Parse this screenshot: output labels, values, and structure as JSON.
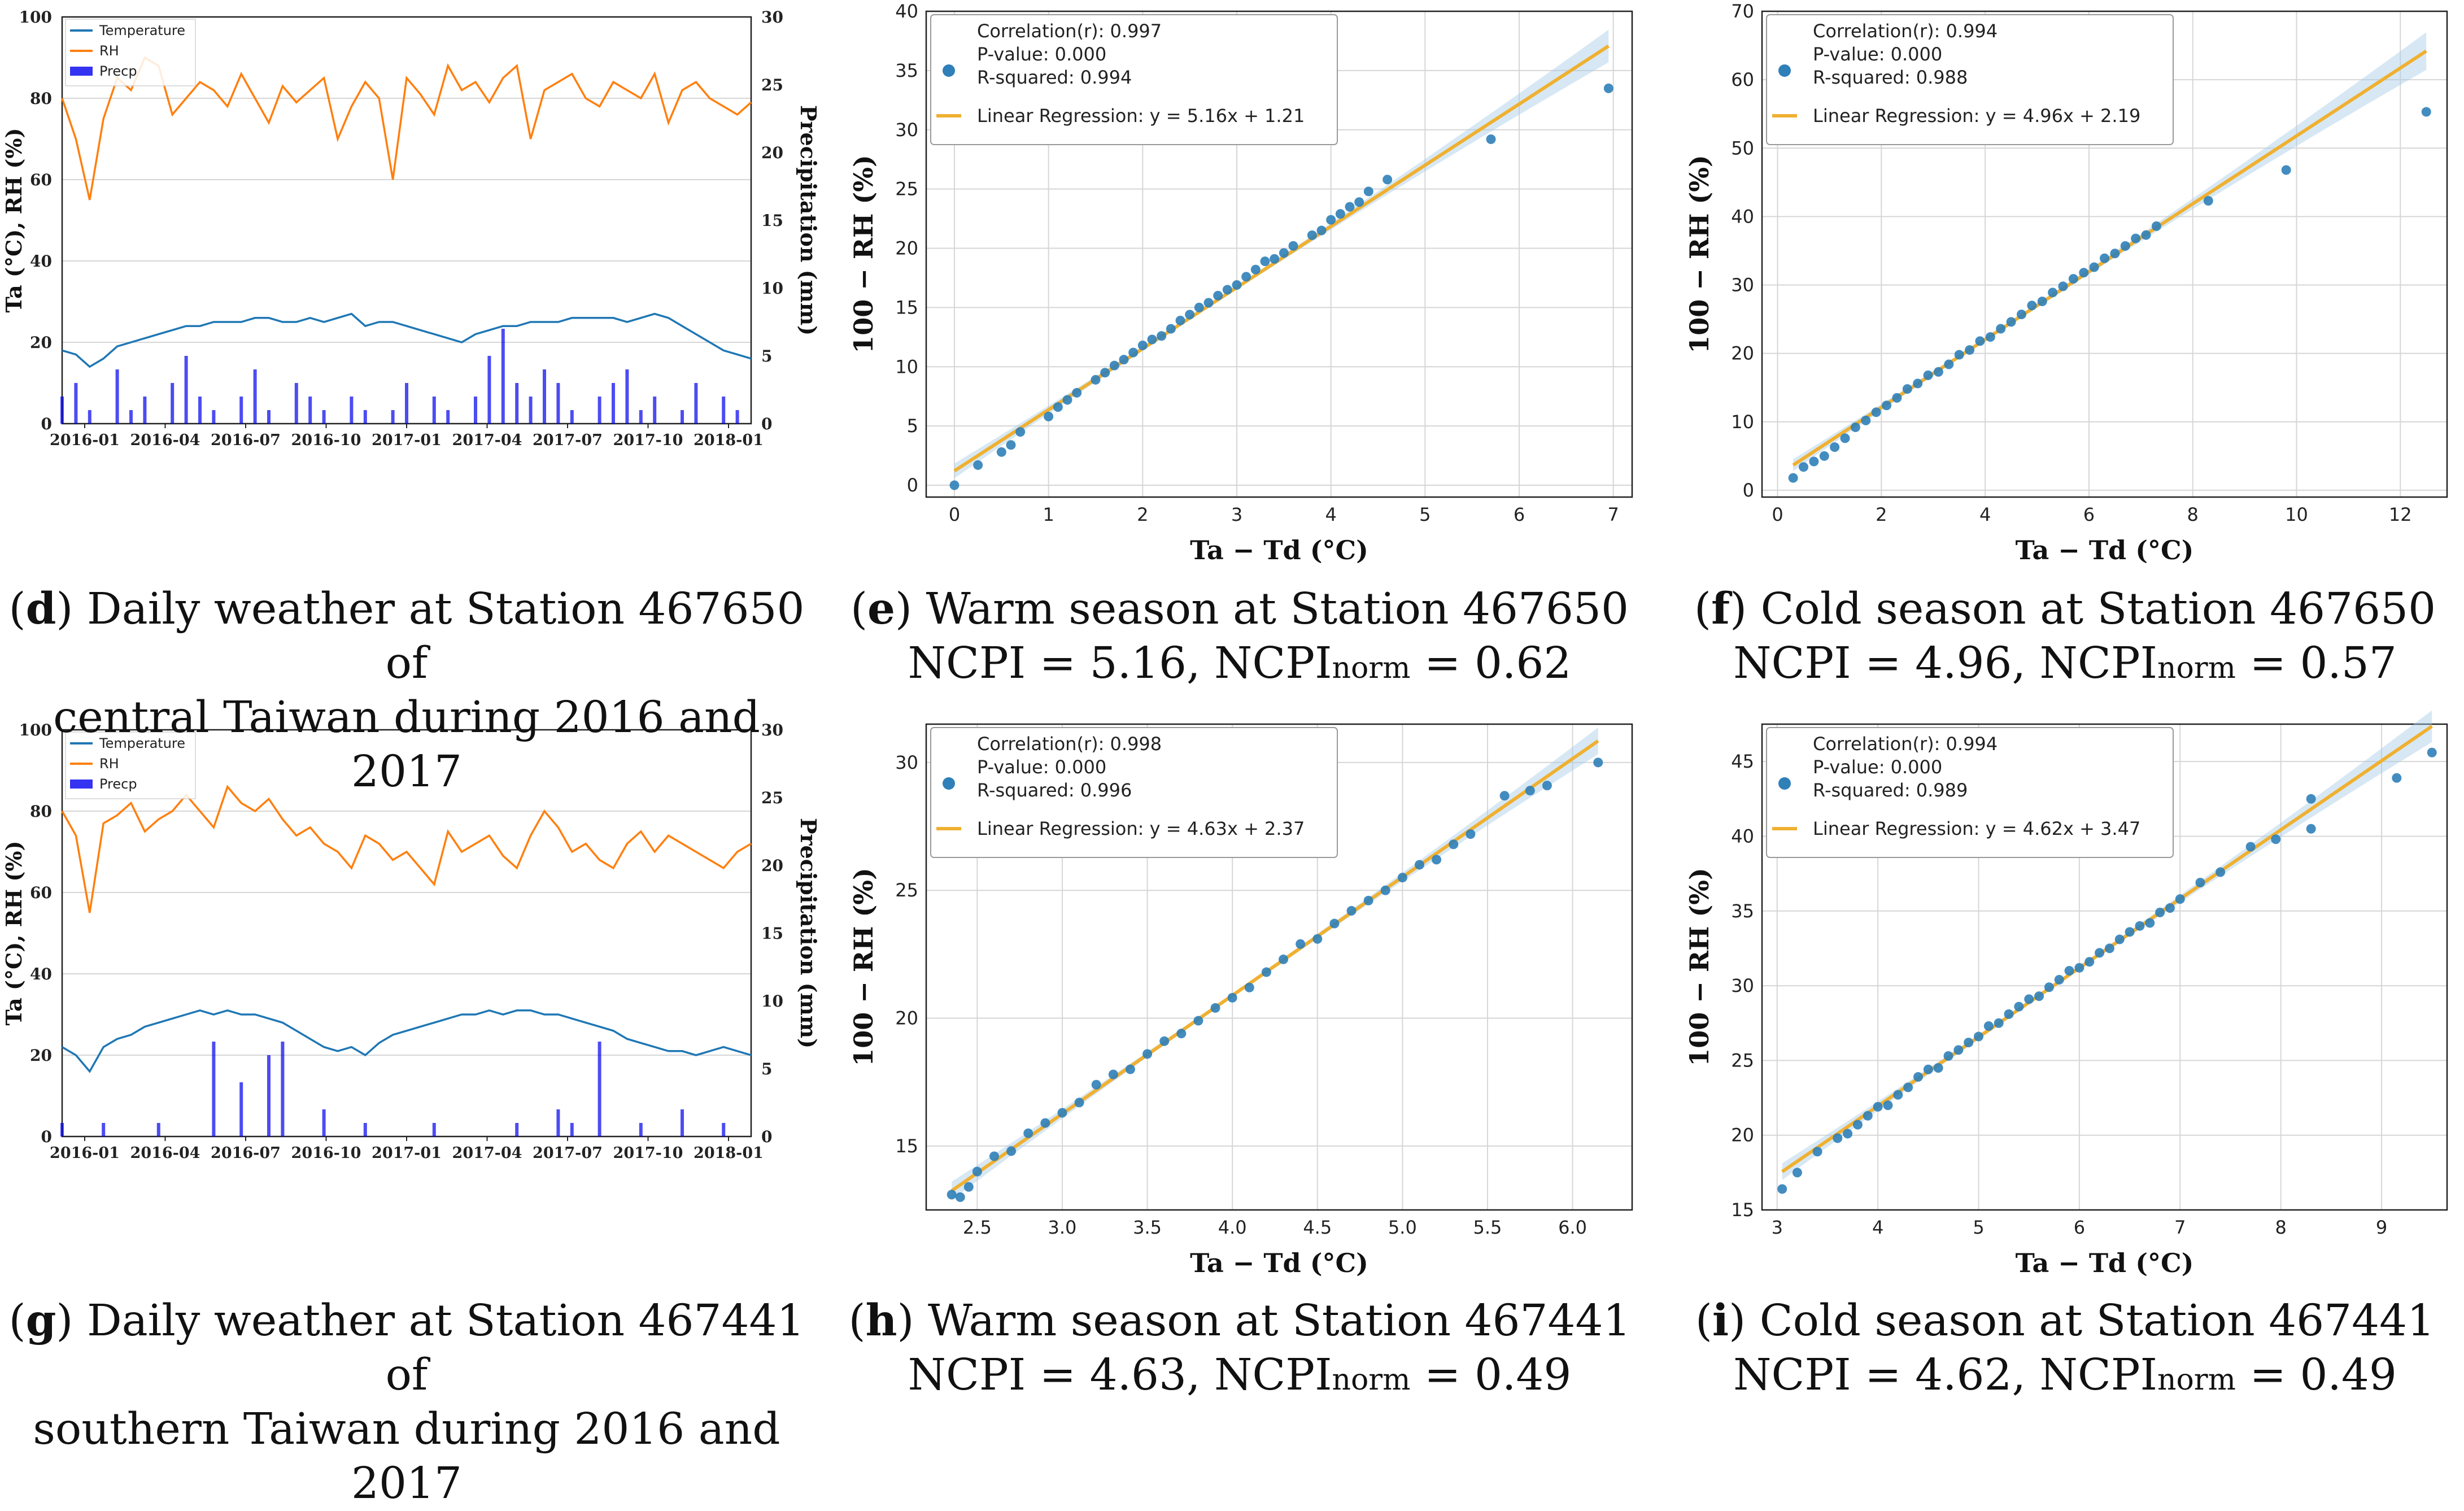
{
  "figure": {
    "captions": {
      "d": {
        "letter": "d",
        "lines": [
          "Daily weather at Station 467650 of",
          "central Taiwan during 2016 and 2017"
        ]
      },
      "e": {
        "letter": "e",
        "lines": [
          "Warm season at Station 467650"
        ],
        "ncpi": "NCPI = 5.16, NCPI",
        "norm": "norm",
        "ncpi_norm": " = 0.62"
      },
      "f": {
        "letter": "f",
        "lines": [
          "Cold season at Station 467650"
        ],
        "ncpi": "NCPI = 4.96, NCPI",
        "norm": "norm",
        "ncpi_norm": " = 0.57"
      },
      "g": {
        "letter": "g",
        "lines": [
          "Daily weather at Station 467441 of",
          "southern Taiwan during 2016 and",
          "2017"
        ]
      },
      "h": {
        "letter": "h",
        "lines": [
          "Warm season at Station 467441"
        ],
        "ncpi": "NCPI = 4.63, NCPI",
        "norm": "norm",
        "ncpi_norm": " = 0.49"
      },
      "i": {
        "letter": "i",
        "lines": [
          "Cold season at Station 467441"
        ],
        "ncpi": "NCPI = 4.62, NCPI",
        "norm": "norm",
        "ncpi_norm": " = 0.49"
      }
    }
  },
  "colors": {
    "temperature": "#1f77b4",
    "rh": "#ff7f0e",
    "precip": "#0000ee",
    "scatter": "#2f7fb8",
    "fit": "#f0b030",
    "band": "#a6cbe6",
    "grid": "#d6d6d6"
  },
  "chart_data": [
    {
      "id": "d",
      "type": "line",
      "title": "",
      "xlabel": "",
      "ylabel": "Ta (°C), RH (%)",
      "ylabel2": "Precipitation (mm)",
      "ylim": [
        0,
        100
      ],
      "y2lim": [
        0,
        30
      ],
      "yticks": [
        "0",
        "20",
        "40",
        "60",
        "80",
        "100"
      ],
      "y2ticks": [
        "0",
        "5",
        "10",
        "15",
        "20",
        "25",
        "30"
      ],
      "xticks": [
        "2016-01",
        "2016-04",
        "2016-07",
        "2016-10",
        "2017-01",
        "2017-04",
        "2017-07",
        "2017-10",
        "2018-01"
      ],
      "legend": [
        "Temperature",
        "RH",
        "Precp"
      ],
      "series": [
        {
          "name": "Temperature",
          "values": [
            18,
            17,
            14,
            16,
            19,
            20,
            21,
            22,
            23,
            24,
            24,
            25,
            25,
            25,
            26,
            26,
            25,
            25,
            26,
            25,
            26,
            27,
            24,
            25,
            25,
            24,
            23,
            22,
            21,
            20,
            22,
            23,
            24,
            24,
            25,
            25,
            25,
            26,
            26,
            26,
            26,
            25,
            26,
            27,
            26,
            24,
            22,
            20,
            18,
            17,
            16
          ]
        },
        {
          "name": "RH",
          "values": [
            80,
            70,
            55,
            75,
            85,
            82,
            90,
            88,
            76,
            80,
            84,
            82,
            78,
            86,
            80,
            74,
            83,
            79,
            82,
            85,
            70,
            78,
            84,
            80,
            60,
            85,
            81,
            76,
            88,
            82,
            84,
            79,
            85,
            88,
            70,
            82,
            84,
            86,
            80,
            78,
            84,
            82,
            80,
            86,
            74,
            82,
            84,
            80,
            78,
            76,
            79
          ]
        },
        {
          "name": "Precp",
          "values": [
            2,
            3,
            1,
            0,
            4,
            1,
            2,
            0,
            3,
            5,
            2,
            1,
            0,
            2,
            4,
            1,
            0,
            3,
            2,
            1,
            0,
            2,
            1,
            0,
            1,
            3,
            0,
            2,
            1,
            0,
            2,
            5,
            7,
            3,
            2,
            4,
            3,
            1,
            0,
            2,
            3,
            4,
            1,
            2,
            0,
            1,
            3,
            0,
            2,
            1,
            0
          ]
        }
      ]
    },
    {
      "id": "e",
      "type": "scatter",
      "xlabel": "Ta − Td (°C)",
      "ylabel": "100 − RH (%)",
      "xlim": [
        -0.3,
        7.2
      ],
      "ylim": [
        -1,
        40
      ],
      "xticks": [
        0,
        1,
        2,
        3,
        4,
        5,
        6,
        7
      ],
      "yticks": [
        0,
        5,
        10,
        15,
        20,
        25,
        30,
        35,
        40
      ],
      "slope": 5.16,
      "intercept": 1.21,
      "stats": {
        "r": "Correlation(r): 0.997",
        "p": "P-value: 0.000",
        "r2": "R-squared: 0.994",
        "fit": "Linear Regression: y = 5.16x + 1.21"
      },
      "x": [
        0.0,
        0.25,
        0.5,
        0.6,
        0.7,
        1.0,
        1.1,
        1.2,
        1.3,
        1.5,
        1.6,
        1.7,
        1.8,
        1.9,
        2.0,
        2.1,
        2.2,
        2.3,
        2.4,
        2.5,
        2.6,
        2.7,
        2.8,
        2.9,
        3.0,
        3.1,
        3.2,
        3.3,
        3.4,
        3.5,
        3.6,
        3.8,
        3.9,
        4.0,
        4.1,
        4.2,
        4.3,
        4.4,
        4.6,
        5.7,
        6.95
      ],
      "y": [
        0.0,
        1.7,
        2.8,
        3.4,
        4.5,
        5.8,
        6.6,
        7.2,
        7.8,
        8.9,
        9.5,
        10.1,
        10.6,
        11.2,
        11.8,
        12.3,
        12.6,
        13.2,
        13.9,
        14.4,
        15.0,
        15.4,
        16.0,
        16.5,
        16.9,
        17.6,
        18.2,
        18.9,
        19.1,
        19.6,
        20.2,
        21.1,
        21.5,
        22.4,
        22.9,
        23.5,
        23.9,
        24.8,
        25.8,
        29.2,
        33.5
      ]
    },
    {
      "id": "f",
      "type": "scatter",
      "xlabel": "Ta − Td (°C)",
      "ylabel": "100 − RH (%)",
      "xlim": [
        -0.3,
        12.9
      ],
      "ylim": [
        -1,
        70
      ],
      "xticks": [
        0,
        2,
        4,
        6,
        8,
        10,
        12
      ],
      "yticks": [
        0,
        10,
        20,
        30,
        40,
        50,
        60,
        70
      ],
      "slope": 4.96,
      "intercept": 2.19,
      "stats": {
        "r": "Correlation(r): 0.994",
        "p": "P-value: 0.000",
        "r2": "R-squared: 0.988",
        "fit": "Linear Regression: y = 4.96x + 2.19"
      },
      "x": [
        0.3,
        0.5,
        0.7,
        0.9,
        1.1,
        1.3,
        1.5,
        1.7,
        1.9,
        2.1,
        2.3,
        2.5,
        2.7,
        2.9,
        3.1,
        3.3,
        3.5,
        3.7,
        3.9,
        4.1,
        4.3,
        4.5,
        4.7,
        4.9,
        5.1,
        5.3,
        5.5,
        5.7,
        5.9,
        6.1,
        6.3,
        6.5,
        6.7,
        6.9,
        7.1,
        7.3,
        8.3,
        9.8,
        12.5
      ],
      "y": [
        1.8,
        3.4,
        4.2,
        5.0,
        6.3,
        7.6,
        9.2,
        10.2,
        11.4,
        12.4,
        13.5,
        14.8,
        15.6,
        16.8,
        17.3,
        18.4,
        19.8,
        20.5,
        21.8,
        22.4,
        23.6,
        24.6,
        25.7,
        27.0,
        27.6,
        28.9,
        29.8,
        30.9,
        31.8,
        32.6,
        33.9,
        34.6,
        35.7,
        36.8,
        37.3,
        38.6,
        42.3,
        46.8,
        55.3
      ]
    },
    {
      "id": "g",
      "type": "line",
      "title": "",
      "xlabel": "",
      "ylabel": "Ta (°C), RH (%)",
      "ylabel2": "Precipitation (mm)",
      "ylim": [
        0,
        100
      ],
      "y2lim": [
        0,
        30
      ],
      "yticks": [
        "0",
        "20",
        "40",
        "60",
        "80",
        "100"
      ],
      "y2ticks": [
        "0",
        "5",
        "10",
        "15",
        "20",
        "25",
        "30"
      ],
      "xticks": [
        "2016-01",
        "2016-04",
        "2016-07",
        "2016-10",
        "2017-01",
        "2017-04",
        "2017-07",
        "2017-10",
        "2018-01"
      ],
      "legend": [
        "Temperature",
        "RH",
        "Precp"
      ],
      "series": [
        {
          "name": "Temperature",
          "values": [
            22,
            20,
            16,
            22,
            24,
            25,
            27,
            28,
            29,
            30,
            31,
            30,
            31,
            30,
            30,
            29,
            28,
            26,
            24,
            22,
            21,
            22,
            20,
            23,
            25,
            26,
            27,
            28,
            29,
            30,
            30,
            31,
            30,
            31,
            31,
            30,
            30,
            29,
            28,
            27,
            26,
            24,
            23,
            22,
            21,
            21,
            20,
            21,
            22,
            21,
            20
          ]
        },
        {
          "name": "RH",
          "values": [
            80,
            74,
            55,
            77,
            79,
            82,
            75,
            78,
            80,
            84,
            80,
            76,
            86,
            82,
            80,
            83,
            78,
            74,
            76,
            72,
            70,
            66,
            74,
            72,
            68,
            70,
            66,
            62,
            75,
            70,
            72,
            74,
            69,
            66,
            74,
            80,
            76,
            70,
            72,
            68,
            66,
            72,
            75,
            70,
            74,
            72,
            70,
            68,
            66,
            70,
            72
          ]
        },
        {
          "name": "Precp",
          "values": [
            1,
            0,
            0,
            1,
            0,
            0,
            0,
            1,
            0,
            0,
            0,
            7,
            0,
            4,
            0,
            6,
            7,
            0,
            0,
            2,
            0,
            0,
            1,
            0,
            0,
            0,
            0,
            1,
            0,
            0,
            0,
            0,
            0,
            1,
            0,
            0,
            2,
            1,
            0,
            7,
            0,
            0,
            1,
            0,
            0,
            2,
            0,
            0,
            1,
            0,
            0
          ]
        }
      ]
    },
    {
      "id": "h",
      "type": "scatter",
      "xlabel": "Ta − Td (°C)",
      "ylabel": "100 − RH (%)",
      "xlim": [
        2.2,
        6.35
      ],
      "ylim": [
        12.5,
        31.5
      ],
      "xticks": [
        2.5,
        3.0,
        3.5,
        4.0,
        4.5,
        5.0,
        5.5,
        6.0
      ],
      "xticklabels": [
        "2.5",
        "3.0",
        "3.5",
        "4.0",
        "4.5",
        "5.0",
        "5.5",
        "6.0"
      ],
      "yticks": [
        15,
        20,
        25,
        30
      ],
      "slope": 4.63,
      "intercept": 2.37,
      "stats": {
        "r": "Correlation(r): 0.998",
        "p": "P-value: 0.000",
        "r2": "R-squared: 0.996",
        "fit": "Linear Regression: y = 4.63x + 2.37"
      },
      "x": [
        2.35,
        2.4,
        2.45,
        2.5,
        2.6,
        2.7,
        2.8,
        2.9,
        3.0,
        3.1,
        3.2,
        3.3,
        3.4,
        3.5,
        3.6,
        3.7,
        3.8,
        3.9,
        4.0,
        4.1,
        4.2,
        4.3,
        4.4,
        4.5,
        4.6,
        4.7,
        4.8,
        4.9,
        5.0,
        5.1,
        5.2,
        5.3,
        5.4,
        5.6,
        5.75,
        5.85,
        6.15
      ],
      "y": [
        13.1,
        13.0,
        13.4,
        14.0,
        14.6,
        14.8,
        15.5,
        15.9,
        16.3,
        16.7,
        17.4,
        17.8,
        18.0,
        18.6,
        19.1,
        19.4,
        19.9,
        20.4,
        20.8,
        21.2,
        21.8,
        22.3,
        22.9,
        23.1,
        23.7,
        24.2,
        24.6,
        25.0,
        25.5,
        26.0,
        26.2,
        26.8,
        27.2,
        28.7,
        28.9,
        29.1,
        30.0
      ]
    },
    {
      "id": "i",
      "type": "scatter",
      "xlabel": "Ta − Td (°C)",
      "ylabel": "100 − RH (%)",
      "xlim": [
        2.85,
        9.65
      ],
      "ylim": [
        15,
        47.5
      ],
      "xticks": [
        3,
        4,
        5,
        6,
        7,
        8,
        9
      ],
      "yticks": [
        15,
        20,
        25,
        30,
        35,
        40,
        45
      ],
      "slope": 4.62,
      "intercept": 3.47,
      "stats": {
        "r": "Correlation(r): 0.994",
        "p": "P-value: 0.000",
        "r2": "R-squared: 0.989",
        "fit": "Linear Regression: y = 4.62x + 3.47"
      },
      "x": [
        3.05,
        3.2,
        3.4,
        3.6,
        3.7,
        3.8,
        3.9,
        4.0,
        4.1,
        4.2,
        4.3,
        4.4,
        4.5,
        4.6,
        4.7,
        4.8,
        4.9,
        5.0,
        5.1,
        5.2,
        5.3,
        5.4,
        5.5,
        5.6,
        5.7,
        5.8,
        5.9,
        6.0,
        6.1,
        6.2,
        6.3,
        6.4,
        6.5,
        6.6,
        6.7,
        6.8,
        6.9,
        7.0,
        7.2,
        7.4,
        7.7,
        7.95,
        8.3,
        8.3,
        9.15,
        9.5
      ],
      "y": [
        16.4,
        17.5,
        18.9,
        19.8,
        20.1,
        20.7,
        21.3,
        21.9,
        22.0,
        22.7,
        23.2,
        23.9,
        24.4,
        24.5,
        25.3,
        25.7,
        26.2,
        26.6,
        27.3,
        27.5,
        28.1,
        28.6,
        29.1,
        29.3,
        29.9,
        30.4,
        31.0,
        31.2,
        31.6,
        32.2,
        32.5,
        33.1,
        33.6,
        34.0,
        34.2,
        34.9,
        35.2,
        35.8,
        36.9,
        37.6,
        39.3,
        39.8,
        42.5,
        40.5,
        43.9,
        45.6
      ]
    }
  ]
}
